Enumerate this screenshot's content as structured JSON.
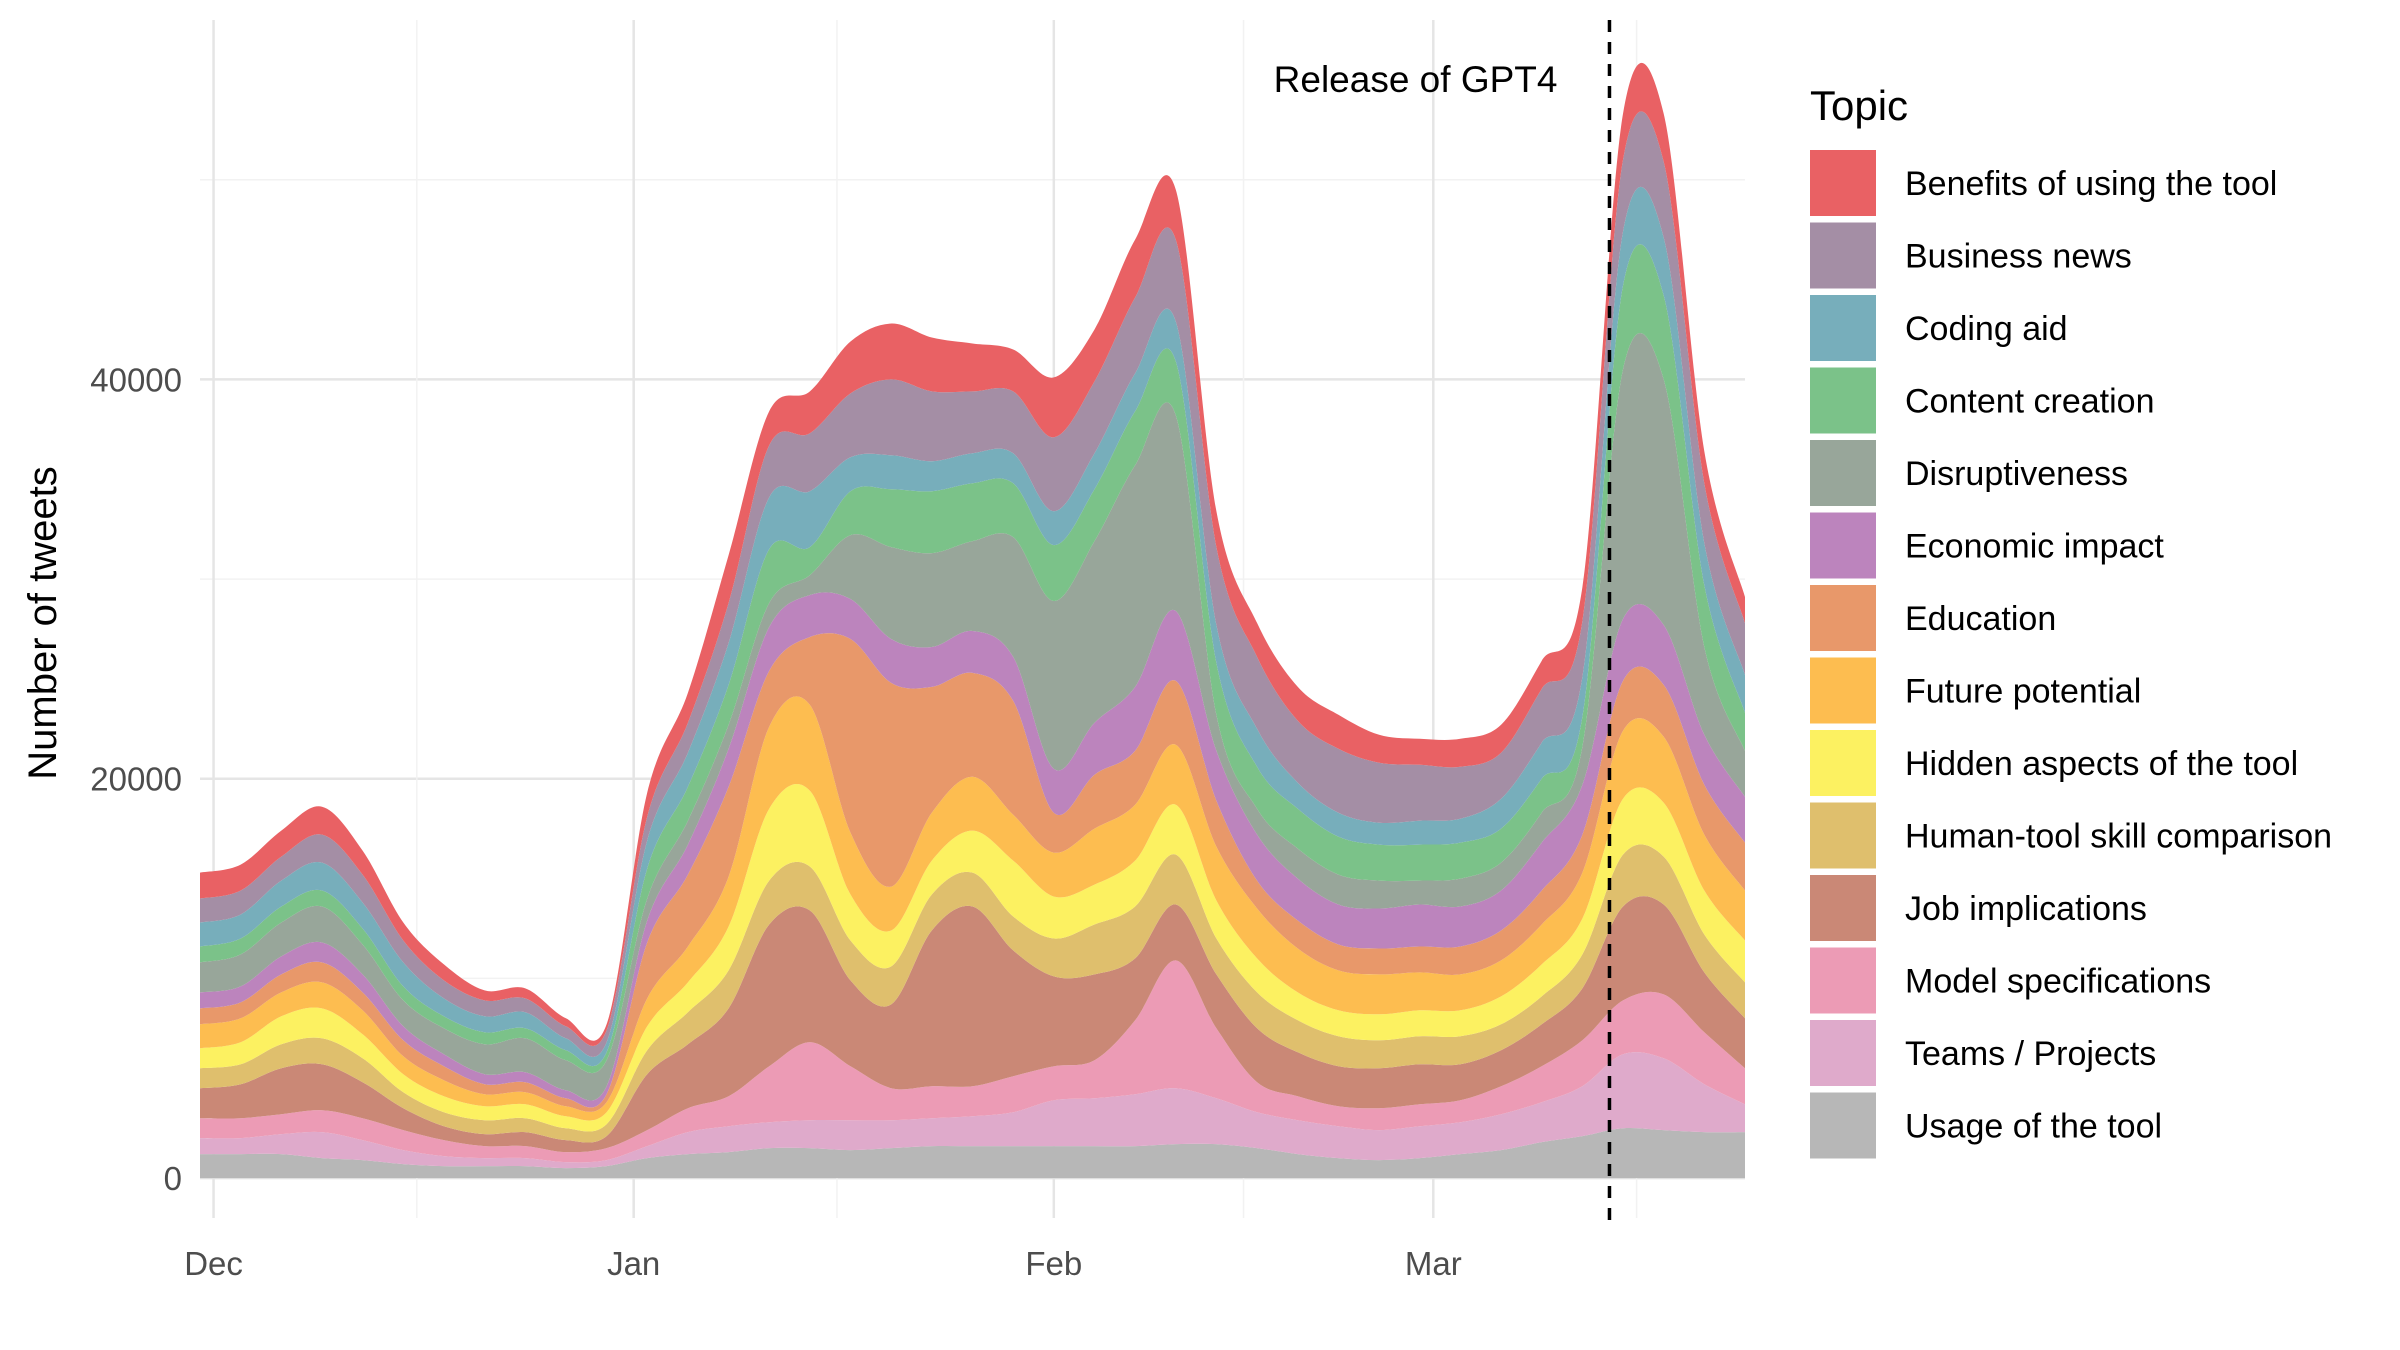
{
  "chart_data": {
    "type": "area",
    "stacked": true,
    "ylabel": "Number of tweets",
    "xlabel": "",
    "x_tick_labels": [
      "Dec",
      "Jan",
      "Feb",
      "Mar"
    ],
    "x_tick_dates": [
      "2022-12-01",
      "2023-01-01",
      "2023-02-01",
      "2023-03-01"
    ],
    "y_ticks": [
      0,
      20000,
      40000
    ],
    "ylim": [
      -2000,
      58000
    ],
    "xlim": [
      "2022-11-30",
      "2023-03-24"
    ],
    "grid": true,
    "annotation": {
      "text": "Release of GPT4",
      "date": "2023-03-14",
      "line_style": "dashed"
    },
    "legend": {
      "title": "Topic",
      "position": "right"
    },
    "dates": [
      "2022-11-30",
      "2022-12-03",
      "2022-12-06",
      "2022-12-09",
      "2022-12-12",
      "2022-12-15",
      "2022-12-18",
      "2022-12-21",
      "2022-12-24",
      "2022-12-27",
      "2022-12-30",
      "2023-01-02",
      "2023-01-05",
      "2023-01-08",
      "2023-01-11",
      "2023-01-14",
      "2023-01-17",
      "2023-01-20",
      "2023-01-23",
      "2023-01-26",
      "2023-01-29",
      "2023-02-01",
      "2023-02-04",
      "2023-02-07",
      "2023-02-10",
      "2023-02-13",
      "2023-02-16",
      "2023-02-19",
      "2023-02-22",
      "2023-02-25",
      "2023-02-28",
      "2023-03-03",
      "2023-03-06",
      "2023-03-09",
      "2023-03-12",
      "2023-03-15",
      "2023-03-18",
      "2023-03-21",
      "2023-03-24"
    ],
    "series": [
      {
        "name": "Usage of the tool",
        "color": "#b7b7b7",
        "values": [
          1200,
          1200,
          1200,
          1000,
          900,
          700,
          600,
          600,
          600,
          500,
          600,
          1000,
          1200,
          1300,
          1500,
          1500,
          1400,
          1500,
          1600,
          1600,
          1600,
          1600,
          1600,
          1600,
          1700,
          1700,
          1500,
          1200,
          1000,
          900,
          1000,
          1200,
          1400,
          1800,
          2100,
          2500,
          2400,
          2300,
          2300
        ]
      },
      {
        "name": "Teams / Projects",
        "color": "#dfaacb",
        "values": [
          800,
          800,
          1000,
          1300,
          1000,
          700,
          500,
          400,
          400,
          300,
          300,
          600,
          1100,
          1300,
          1300,
          1400,
          1500,
          1400,
          1400,
          1500,
          1700,
          2300,
          2400,
          2600,
          2800,
          2300,
          1800,
          1700,
          1600,
          1500,
          1600,
          1600,
          1800,
          2000,
          2500,
          3700,
          3600,
          2400,
          1400
        ]
      },
      {
        "name": "Model specifications",
        "color": "#ec9bb5",
        "values": [
          1000,
          1000,
          1000,
          1100,
          1100,
          1000,
          800,
          600,
          600,
          500,
          600,
          800,
          1200,
          1500,
          2800,
          3900,
          2700,
          1600,
          1600,
          1500,
          1800,
          1700,
          1900,
          3700,
          6400,
          3500,
          1500,
          1200,
          1000,
          1100,
          1100,
          1100,
          1400,
          1800,
          2300,
          2700,
          3200,
          2600,
          1800
        ]
      },
      {
        "name": "Job implications",
        "color": "#ca8876",
        "values": [
          1500,
          1700,
          2300,
          2300,
          1800,
          1100,
          700,
          600,
          700,
          600,
          600,
          2800,
          3200,
          4400,
          7100,
          6600,
          4300,
          4200,
          7800,
          9000,
          6300,
          4500,
          4300,
          3100,
          2800,
          2700,
          2700,
          2200,
          2000,
          2000,
          2000,
          1800,
          1800,
          2100,
          2600,
          4700,
          4500,
          3000,
          2500
        ]
      },
      {
        "name": "Human-tool skill comparison",
        "color": "#dfbf6d",
        "values": [
          1000,
          1000,
          1200,
          1300,
          1200,
          800,
          700,
          700,
          700,
          600,
          600,
          1200,
          1600,
          1900,
          2200,
          2200,
          2000,
          1900,
          1800,
          1700,
          1700,
          1900,
          2500,
          2600,
          2500,
          1800,
          1800,
          1600,
          1500,
          1400,
          1400,
          1400,
          1300,
          1400,
          1700,
          2600,
          2400,
          1900,
          1800
        ]
      },
      {
        "name": "Hidden aspects of the tool",
        "color": "#fcf161",
        "values": [
          1000,
          1100,
          1400,
          1500,
          1200,
          900,
          800,
          700,
          700,
          600,
          600,
          1200,
          1500,
          2200,
          3600,
          3800,
          2300,
          1800,
          1700,
          2100,
          2800,
          2100,
          2000,
          2300,
          2500,
          1900,
          1700,
          1400,
          1300,
          1300,
          1300,
          1300,
          1400,
          1600,
          1800,
          2800,
          2700,
          2200,
          2100
        ]
      },
      {
        "name": "Future potential",
        "color": "#fdbd50",
        "values": [
          1200,
          1200,
          1200,
          1300,
          1200,
          900,
          800,
          600,
          600,
          500,
          500,
          1400,
          1800,
          2500,
          4100,
          4300,
          3100,
          2200,
          2400,
          2700,
          2300,
          2200,
          2800,
          2800,
          3000,
          2700,
          2500,
          2200,
          2000,
          2000,
          1900,
          1800,
          1800,
          2000,
          2300,
          3400,
          3300,
          2800,
          2500
        ]
      },
      {
        "name": "Education",
        "color": "#e8986a",
        "values": [
          800,
          800,
          900,
          1000,
          900,
          800,
          700,
          500,
          500,
          400,
          400,
          2800,
          3600,
          4500,
          2800,
          3400,
          9700,
          10200,
          6300,
          5200,
          5700,
          2000,
          2700,
          2700,
          3200,
          2300,
          1400,
          1400,
          1300,
          1300,
          1300,
          1400,
          1500,
          1700,
          1900,
          2500,
          2600,
          2500,
          2400
        ]
      },
      {
        "name": "Economic impact",
        "color": "#bc84bd",
        "values": [
          800,
          800,
          900,
          1000,
          900,
          700,
          600,
          500,
          500,
          400,
          400,
          1100,
          1500,
          1900,
          2200,
          2100,
          2000,
          2200,
          2000,
          2100,
          2200,
          2200,
          2600,
          3200,
          3500,
          2500,
          2300,
          2100,
          2000,
          2000,
          2100,
          2000,
          2000,
          2400,
          2500,
          3100,
          3000,
          2500,
          2300
        ]
      },
      {
        "name": "Disruptiveness",
        "color": "#98a69a",
        "values": [
          1500,
          1600,
          1700,
          1800,
          1500,
          1300,
          1300,
          1500,
          1700,
          1500,
          1300,
          1100,
          1200,
          1200,
          1200,
          1000,
          3200,
          4600,
          4700,
          4500,
          6000,
          8400,
          9100,
          11100,
          9800,
          1800,
          1300,
          1500,
          1500,
          1400,
          1200,
          1400,
          1400,
          1500,
          1900,
          12500,
          12300,
          4400,
          2300
        ]
      },
      {
        "name": "Content creation",
        "color": "#7bc289",
        "values": [
          800,
          800,
          800,
          800,
          800,
          700,
          600,
          600,
          500,
          500,
          400,
          1500,
          1700,
          2000,
          2700,
          1400,
          2200,
          2900,
          3100,
          2900,
          2700,
          2800,
          2600,
          2700,
          2700,
          2600,
          2100,
          2000,
          1900,
          1800,
          1800,
          1800,
          1700,
          1700,
          1500,
          4200,
          4200,
          3100,
          1900
        ]
      },
      {
        "name": "Coding aid",
        "color": "#77aebb",
        "values": [
          1200,
          1200,
          1300,
          1400,
          1300,
          1200,
          900,
          800,
          800,
          600,
          500,
          1400,
          1700,
          2100,
          2600,
          2800,
          1700,
          1700,
          1500,
          1500,
          1500,
          1700,
          1800,
          1900,
          2000,
          1900,
          1900,
          1300,
          1200,
          1100,
          1200,
          1200,
          1500,
          1800,
          2000,
          2700,
          2900,
          2100,
          1900
        ]
      },
      {
        "name": "Business news",
        "color": "#a48ea5",
        "values": [
          1200,
          1200,
          1200,
          1400,
          1400,
          1100,
          900,
          800,
          700,
          600,
          600,
          1200,
          1500,
          2000,
          2600,
          2900,
          3200,
          3800,
          3500,
          3100,
          3100,
          3700,
          3600,
          3800,
          4100,
          3900,
          3600,
          3100,
          3200,
          3000,
          2800,
          2600,
          2300,
          2700,
          2800,
          3600,
          3800,
          3000,
          2600
        ]
      },
      {
        "name": "Benefits of using the tool",
        "color": "#e96164",
        "values": [
          1300,
          1300,
          1300,
          1400,
          1200,
          900,
          800,
          500,
          500,
          400,
          300,
          1200,
          1500,
          2400,
          1700,
          2100,
          2600,
          2800,
          2700,
          2400,
          2100,
          3000,
          2600,
          2900,
          2500,
          1800,
          1700,
          1700,
          1700,
          1400,
          1300,
          1400,
          1400,
          1400,
          1700,
          2300,
          2400,
          1600,
          1300
        ]
      }
    ]
  }
}
